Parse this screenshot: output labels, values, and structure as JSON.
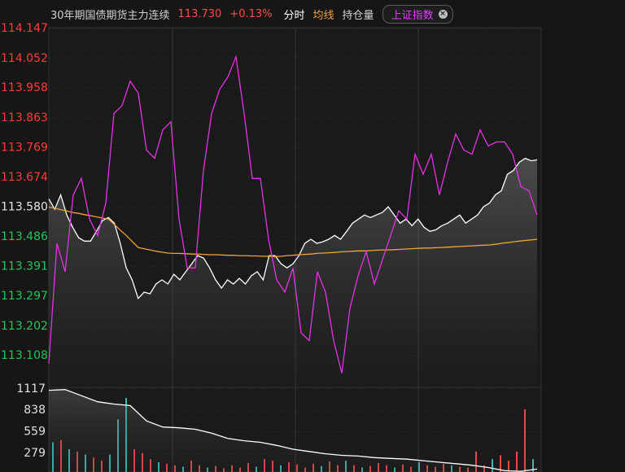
{
  "header": {
    "title": "30年期国债期货主力连续",
    "price": "113.730",
    "change": "+0.13%",
    "tabs": [
      "分时",
      "均线",
      "持仓量"
    ],
    "index_tag": "上证指数"
  },
  "chart_data": [
    {
      "type": "line",
      "ylim": [
        113.013,
        114.147
      ],
      "yticks": [
        114.147,
        114.052,
        113.958,
        113.863,
        113.769,
        113.674,
        {
          "value": 113.58,
          "label": "113.580"
        },
        113.486,
        113.391,
        113.297,
        113.202,
        113.108
      ],
      "tick_colors": {
        "up": "#ff3b3b",
        "flat": "#e6e6e6",
        "down": "#22c55e"
      },
      "series": [
        {
          "color": "#ffffff",
          "fill": true,
          "values": [
            113.606,
            113.573,
            113.619,
            113.555,
            113.516,
            113.483,
            113.472,
            113.472,
            113.503,
            113.537,
            113.547,
            113.529,
            113.465,
            113.387,
            113.349,
            113.29,
            113.31,
            113.305,
            113.336,
            113.349,
            113.336,
            113.367,
            113.349,
            113.375,
            113.4,
            113.426,
            113.418,
            113.387,
            113.349,
            113.323,
            113.349,
            113.336,
            113.354,
            113.336,
            113.362,
            113.375,
            113.349,
            113.426,
            113.426,
            113.4,
            113.387,
            113.4,
            113.426,
            113.465,
            113.478,
            113.465,
            113.47,
            113.478,
            113.49,
            113.478,
            113.503,
            113.529,
            113.542,
            113.555,
            113.547,
            113.555,
            113.563,
            113.581,
            113.555,
            113.529,
            113.542,
            113.521,
            113.542,
            113.516,
            113.503,
            113.508,
            113.521,
            113.529,
            113.542,
            113.555,
            113.529,
            113.542,
            113.555,
            113.581,
            113.593,
            113.619,
            113.632,
            113.684,
            113.696,
            113.722,
            113.735,
            113.727,
            113.73
          ]
        },
        {
          "color": "#f0a33a",
          "values": [
            113.58,
            113.576,
            113.572,
            113.568,
            113.563,
            113.56,
            113.556,
            113.553,
            113.549,
            113.545,
            113.542,
            113.525,
            113.507,
            113.49,
            113.471,
            113.452,
            113.448,
            113.444,
            113.44,
            113.437,
            113.434,
            113.433,
            113.433,
            113.432,
            113.431,
            113.431,
            113.43,
            113.429,
            113.429,
            113.428,
            113.427,
            113.427,
            113.426,
            113.426,
            113.425,
            113.425,
            113.424,
            113.424,
            113.423,
            113.424,
            113.426,
            113.427,
            113.429,
            113.43,
            113.431,
            113.433,
            113.434,
            113.435,
            113.436,
            113.438,
            113.439,
            113.44,
            113.441,
            113.441,
            113.442,
            113.443,
            113.444,
            113.444,
            113.445,
            113.446,
            113.447,
            113.448,
            113.449,
            113.45,
            113.45,
            113.451,
            113.452,
            113.453,
            113.454,
            113.455,
            113.456,
            113.457,
            113.458,
            113.459,
            113.46,
            113.462,
            113.465,
            113.467,
            113.47,
            113.472,
            113.474,
            113.476,
            113.478
          ]
        },
        {
          "color": "#e632e6",
          "values": [
            113.084,
            113.465,
            113.375,
            113.619,
            113.671,
            113.542,
            113.49,
            113.593,
            113.877,
            113.902,
            113.98,
            113.941,
            113.761,
            113.735,
            113.825,
            113.851,
            113.542,
            113.387,
            113.387,
            113.696,
            113.877,
            113.954,
            113.993,
            114.057,
            113.877,
            113.671,
            113.671,
            113.478,
            113.349,
            113.31,
            113.387,
            113.181,
            113.156,
            113.375,
            113.31,
            113.156,
            113.053,
            113.259,
            113.362,
            113.439,
            113.336,
            113.413,
            113.49,
            113.568,
            113.542,
            113.748,
            113.684,
            113.748,
            113.619,
            113.722,
            113.812,
            113.761,
            113.748,
            113.825,
            113.774,
            113.787,
            113.787,
            113.748,
            113.645,
            113.632,
            113.555
          ]
        }
      ]
    },
    {
      "type": "bar",
      "ylim": [
        0,
        1117
      ],
      "yticks": [
        1117,
        838,
        559,
        279
      ],
      "values": [
        420,
        450,
        330,
        300,
        260,
        220,
        180,
        260,
        720,
        1000,
        330,
        280,
        200,
        160,
        140,
        120,
        100,
        180,
        120,
        90,
        110,
        80,
        120,
        90,
        150,
        100,
        200,
        180,
        120,
        160,
        130,
        90,
        140,
        110,
        170,
        120,
        180,
        120,
        90,
        110,
        150,
        120,
        90,
        130,
        100,
        160,
        120,
        100,
        140,
        120,
        100,
        90,
        300,
        120,
        200,
        250,
        180,
        300,
        850,
        200
      ],
      "colors": [
        "#3fb6b6",
        "#e84a4a",
        "#3fb6b6",
        "#e84a4a",
        "#3fb6b6",
        "#e84a4a",
        "#e84a4a",
        "#3fb6b6",
        "#3fb6b6",
        "#3fb6b6",
        "#e84a4a",
        "#e84a4a",
        "#e84a4a",
        "#3fb6b6",
        "#e84a4a",
        "#e84a4a",
        "#3fb6b6",
        "#e84a4a",
        "#e84a4a",
        "#3fb6b6",
        "#e84a4a",
        "#e84a4a",
        "#e84a4a",
        "#e84a4a",
        "#e84a4a",
        "#3fb6b6",
        "#e84a4a",
        "#e84a4a",
        "#3fb6b6",
        "#e84a4a",
        "#e84a4a",
        "#e84a4a",
        "#e84a4a",
        "#3fb6b6",
        "#e84a4a",
        "#e84a4a",
        "#3fb6b6",
        "#e84a4a",
        "#3fb6b6",
        "#e84a4a",
        "#e84a4a",
        "#e84a4a",
        "#3fb6b6",
        "#e84a4a",
        "#e84a4a",
        "#3fb6b6",
        "#e84a4a",
        "#e84a4a",
        "#e84a4a",
        "#3fb6b6",
        "#e84a4a",
        "#e84a4a",
        "#e84a4a",
        "#e84a4a",
        "#3fb6b6",
        "#e84a4a",
        "#e84a4a",
        "#e84a4a",
        "#e84a4a",
        "#3fb6b6"
      ],
      "series": [
        {
          "color": "#ffffff",
          "fill": true,
          "values": [
            1100,
            1110,
            1030,
            950,
            920,
            900,
            700,
            620,
            610,
            590,
            540,
            470,
            440,
            420,
            380,
            330,
            300,
            270,
            250,
            240,
            220,
            210,
            200,
            180,
            160,
            140,
            120,
            90,
            50,
            40,
            70
          ]
        }
      ]
    }
  ]
}
